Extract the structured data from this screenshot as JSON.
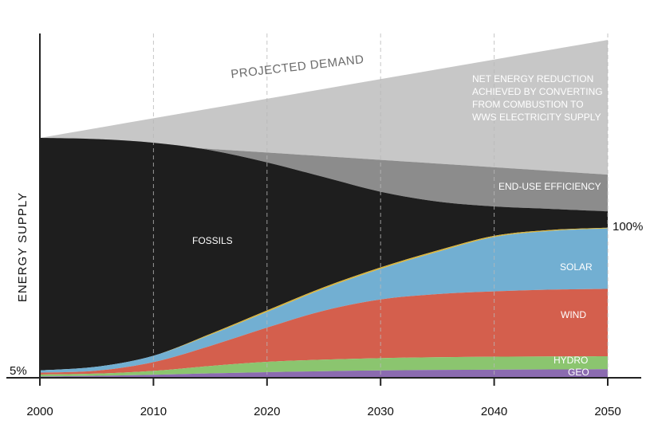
{
  "chart_data": {
    "type": "area",
    "ylabel": "ENERGY SUPPLY",
    "x_ticks": [
      2000,
      2010,
      2020,
      2030,
      2040,
      2050
    ],
    "x": [
      2000,
      2005,
      2010,
      2015,
      2020,
      2025,
      2030,
      2035,
      2040,
      2045,
      2050
    ],
    "xlim": [
      2000,
      2050
    ],
    "ylim": [
      0,
      140
    ],
    "y_annotations": [
      {
        "value": 3,
        "label": "5%"
      },
      {
        "value": 61,
        "label": "100%"
      }
    ],
    "stack_order": [
      "GEO",
      "HYDRO",
      "WIND",
      "SOLAR",
      "OTHER"
    ],
    "series": [
      {
        "name": "GEO",
        "color": "#8b6bb0",
        "values": [
          0.5,
          0.8,
          1.2,
          1.8,
          2.3,
          2.7,
          3.0,
          3.2,
          3.3,
          3.4,
          3.5
        ]
      },
      {
        "name": "HYDRO",
        "color": "#8bc56f",
        "values": [
          0.8,
          0.9,
          1.6,
          3.0,
          4.2,
          4.7,
          5.0,
          5.2,
          5.3,
          5.3,
          5.3
        ]
      },
      {
        "name": "WIND",
        "color": "#d45f4d",
        "values": [
          0.8,
          1.2,
          3.6,
          8.2,
          14.0,
          20.0,
          24.0,
          25.8,
          26.7,
          27.3,
          27.5
        ]
      },
      {
        "name": "SOLAR",
        "color": "#72afd2",
        "values": [
          0.9,
          1.6,
          2.6,
          4.5,
          6.4,
          9.0,
          12.5,
          17.2,
          22.2,
          24.0,
          24.7
        ]
      },
      {
        "name": "OTHER",
        "color": "#d9b43a",
        "values": [
          0.0,
          0.0,
          0.0,
          0.4,
          0.6,
          0.6,
          0.6,
          0.6,
          0.5,
          0.4,
          0.3
        ]
      }
    ],
    "upper_bands": {
      "fossil_top": [
        98,
        97.5,
        96,
        93,
        88,
        82,
        76,
        72,
        70,
        69,
        68
      ],
      "efficiency_top": [
        98,
        96.5,
        95,
        93.5,
        92,
        90.5,
        89,
        87.5,
        86,
        84.5,
        83
      ],
      "demand_top": [
        98,
        102,
        106,
        110,
        114,
        118,
        122,
        126,
        130,
        134,
        138
      ]
    },
    "band_colors": {
      "fossils": "#1e1e1e",
      "efficiency": "#8c8c8c",
      "reduction": "#c7c7c7"
    },
    "annotations": {
      "projected_demand": "PROJECTED DEMAND",
      "net_reduction": [
        "NET ENERGY REDUCTION",
        "ACHIEVED BY CONVERTING",
        "FROM  COMBUSTION  TO",
        "WWS ELECTRICITY SUPPLY"
      ],
      "end_use_efficiency": "END-USE EFFICIENCY",
      "fossils": "FOSSILS",
      "solar": "SOLAR",
      "wind": "WIND",
      "hydro": "HYDRO",
      "geo": "GEO"
    }
  }
}
